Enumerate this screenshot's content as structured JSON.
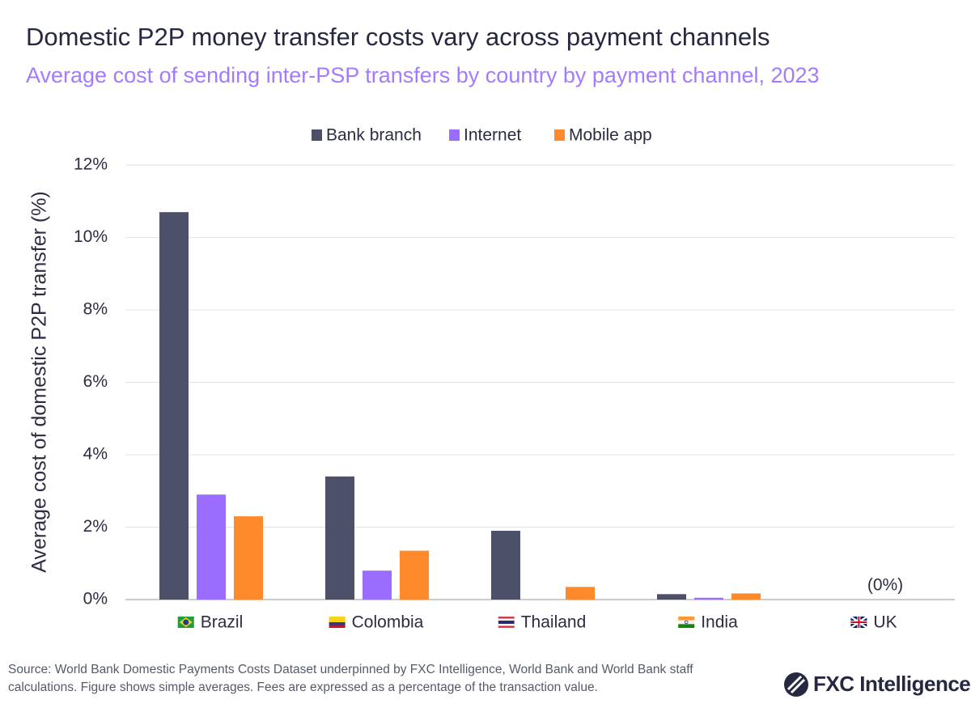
{
  "chart_data": {
    "type": "bar",
    "title": "Domestic P2P money transfer costs vary across payment channels",
    "subtitle": "Average cost of sending inter-PSP transfers by country by payment channel, 2023",
    "y_label": "Average cost of domestic P2P transfer (%)",
    "categories": [
      "Brazil",
      "Colombia",
      "Thailand",
      "India",
      "UK"
    ],
    "series": [
      {
        "name": "Bank branch",
        "color": "#4d5069",
        "values": [
          10.7,
          3.4,
          1.9,
          0.15,
          0
        ]
      },
      {
        "name": "Internet",
        "color": "#9b6dff",
        "values": [
          2.9,
          0.8,
          null,
          0.05,
          0
        ]
      },
      {
        "name": "Mobile app",
        "color": "#ff8a2b",
        "values": [
          2.3,
          1.35,
          0.35,
          0.17,
          0
        ]
      }
    ],
    "annotations": [
      {
        "text": "(0%)",
        "x": "UK",
        "y": 0
      }
    ],
    "ylim": [
      0,
      12
    ],
    "yticks": [
      {
        "value": 0,
        "label": "0%"
      },
      {
        "value": 2,
        "label": "2%"
      },
      {
        "value": 4,
        "label": "4%"
      },
      {
        "value": 6,
        "label": "6%"
      },
      {
        "value": 8,
        "label": "8%"
      },
      {
        "value": 10,
        "label": "10%"
      },
      {
        "value": 12,
        "label": "12%"
      }
    ],
    "grid": true,
    "legend": "top",
    "source": "Source: World Bank Domestic Payments Costs Dataset underpinned by FXC Intelligence, World Bank and World Bank staff calculations. Figure shows simple averages. Fees are expressed as a percentage of the transaction value.",
    "logo": "FXC Intelligence"
  }
}
